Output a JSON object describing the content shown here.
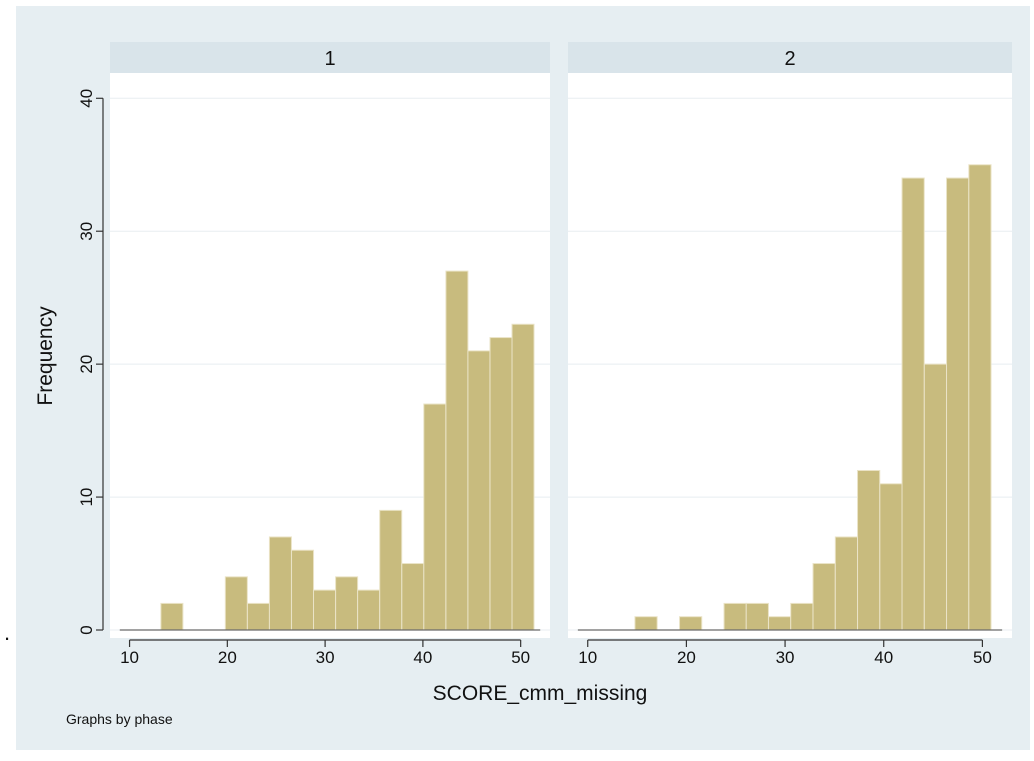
{
  "chart_data": {
    "type": "bar",
    "xlabel": "SCORE_cmm_missing",
    "ylabel": "Frequency",
    "note": "Graphs by phase",
    "stray_mark": ".",
    "xlim": [
      8,
      53
    ],
    "ylim": [
      0,
      41
    ],
    "xticks": [
      "10",
      "20",
      "30",
      "40",
      "50"
    ],
    "yticks": [
      "0",
      "10",
      "20",
      "30",
      "40"
    ],
    "bin_width": 2.25,
    "colors": {
      "bar": "#c8bb7e",
      "bar_edge": "#eae3c6",
      "background": "#e6eef2",
      "strip": "#d9e4ea",
      "plot": "#ffffff",
      "grid": "#e8eef1"
    },
    "panels": [
      {
        "label": "1",
        "bins": [
          {
            "x": 14.33,
            "value": 2
          },
          {
            "x": 20.92,
            "value": 4
          },
          {
            "x": 23.18,
            "value": 2
          },
          {
            "x": 25.43,
            "value": 7
          },
          {
            "x": 27.69,
            "value": 6
          },
          {
            "x": 29.94,
            "value": 3
          },
          {
            "x": 32.2,
            "value": 4
          },
          {
            "x": 34.45,
            "value": 3
          },
          {
            "x": 36.71,
            "value": 9
          },
          {
            "x": 38.97,
            "value": 5
          },
          {
            "x": 41.22,
            "value": 17
          },
          {
            "x": 43.48,
            "value": 27
          },
          {
            "x": 45.73,
            "value": 21
          },
          {
            "x": 47.99,
            "value": 22
          },
          {
            "x": 50.24,
            "value": 23
          }
        ]
      },
      {
        "label": "2",
        "bins": [
          {
            "x": 9.15,
            "value": 0
          },
          {
            "x": 11.4,
            "value": 0
          },
          {
            "x": 13.66,
            "value": 0
          },
          {
            "x": 15.91,
            "value": 1
          },
          {
            "x": 18.17,
            "value": 0
          },
          {
            "x": 20.43,
            "value": 1
          },
          {
            "x": 22.68,
            "value": 0
          },
          {
            "x": 24.94,
            "value": 2
          },
          {
            "x": 27.19,
            "value": 2
          },
          {
            "x": 29.45,
            "value": 1
          },
          {
            "x": 31.7,
            "value": 2
          },
          {
            "x": 33.96,
            "value": 5
          },
          {
            "x": 36.22,
            "value": 7
          },
          {
            "x": 38.47,
            "value": 12
          },
          {
            "x": 40.73,
            "value": 11
          },
          {
            "x": 42.98,
            "value": 34
          },
          {
            "x": 45.24,
            "value": 20
          },
          {
            "x": 47.49,
            "value": 34
          },
          {
            "x": 49.75,
            "value": 35
          }
        ]
      }
    ]
  }
}
